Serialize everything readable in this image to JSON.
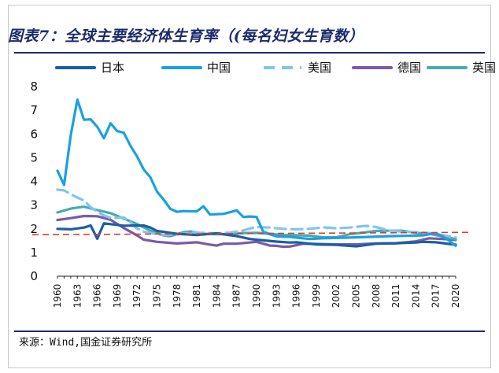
{
  "title": "图表7：全球主要经济体生育率（(每名妇女生育数）",
  "source": "来源：Wind,国金证券研究所",
  "chart_data": {
    "type": "line",
    "title": "图表7：全球主要经济体生育率（(每名妇女生育数）",
    "xlabel": "",
    "ylabel": "",
    "ylim": [
      0,
      8
    ],
    "xlim": [
      1960,
      2020
    ],
    "yticks": [
      "0",
      "1",
      "2",
      "3",
      "4",
      "5",
      "6",
      "7",
      "8"
    ],
    "xticks": [
      "1960",
      "1963",
      "1966",
      "1969",
      "1972",
      "1975",
      "1978",
      "1981",
      "1984",
      "1987",
      "1990",
      "1993",
      "1996",
      "1999",
      "2002",
      "2005",
      "2008",
      "2011",
      "2014",
      "2017",
      "2020"
    ],
    "legend_position": "top",
    "reference_line": {
      "value": 1.75,
      "slope_per_year": 0.00165,
      "style": "dashed",
      "color": "#e23b2e"
    },
    "series": [
      {
        "name": "日本",
        "color": "#1a5fa5",
        "style": "solid",
        "points": [
          [
            1960,
            2.0
          ],
          [
            1962,
            1.98
          ],
          [
            1964,
            2.05
          ],
          [
            1965,
            2.14
          ],
          [
            1966,
            1.58
          ],
          [
            1967,
            2.23
          ],
          [
            1970,
            2.13
          ],
          [
            1973,
            2.14
          ],
          [
            1974,
            2.05
          ],
          [
            1975,
            1.91
          ],
          [
            1978,
            1.79
          ],
          [
            1981,
            1.74
          ],
          [
            1984,
            1.81
          ],
          [
            1987,
            1.69
          ],
          [
            1989,
            1.57
          ],
          [
            1990,
            1.54
          ],
          [
            1993,
            1.46
          ],
          [
            1995,
            1.42
          ],
          [
            1996,
            1.43
          ],
          [
            1999,
            1.34
          ],
          [
            2002,
            1.32
          ],
          [
            2005,
            1.26
          ],
          [
            2008,
            1.37
          ],
          [
            2011,
            1.39
          ],
          [
            2014,
            1.42
          ],
          [
            2015,
            1.45
          ],
          [
            2017,
            1.43
          ],
          [
            2019,
            1.36
          ],
          [
            2020,
            1.33
          ]
        ]
      },
      {
        "name": "中国",
        "color": "#1aa1e0",
        "style": "solid",
        "points": [
          [
            1960,
            4.45
          ],
          [
            1961,
            3.85
          ],
          [
            1962,
            5.95
          ],
          [
            1963,
            7.45
          ],
          [
            1964,
            6.6
          ],
          [
            1965,
            6.62
          ],
          [
            1966,
            6.3
          ],
          [
            1967,
            5.82
          ],
          [
            1968,
            6.45
          ],
          [
            1969,
            6.12
          ],
          [
            1970,
            6.05
          ],
          [
            1971,
            5.5
          ],
          [
            1972,
            5.05
          ],
          [
            1973,
            4.5
          ],
          [
            1974,
            4.17
          ],
          [
            1975,
            3.57
          ],
          [
            1976,
            3.23
          ],
          [
            1977,
            2.84
          ],
          [
            1978,
            2.72
          ],
          [
            1979,
            2.75
          ],
          [
            1980,
            2.74
          ],
          [
            1981,
            2.74
          ],
          [
            1982,
            2.95
          ],
          [
            1983,
            2.6
          ],
          [
            1984,
            2.62
          ],
          [
            1985,
            2.63
          ],
          [
            1986,
            2.7
          ],
          [
            1987,
            2.78
          ],
          [
            1988,
            2.5
          ],
          [
            1989,
            2.52
          ],
          [
            1990,
            2.5
          ],
          [
            1991,
            1.88
          ],
          [
            1992,
            1.77
          ],
          [
            1993,
            1.68
          ],
          [
            1995,
            1.66
          ],
          [
            1998,
            1.57
          ],
          [
            2000,
            1.6
          ],
          [
            2005,
            1.64
          ],
          [
            2010,
            1.69
          ],
          [
            2015,
            1.72
          ],
          [
            2016,
            1.77
          ],
          [
            2017,
            1.81
          ],
          [
            2018,
            1.69
          ],
          [
            2019,
            1.5
          ],
          [
            2020,
            1.28
          ]
        ]
      },
      {
        "name": "美国",
        "color": "#7fc6ec",
        "style": "dashed",
        "points": [
          [
            1960,
            3.65
          ],
          [
            1961,
            3.62
          ],
          [
            1962,
            3.46
          ],
          [
            1963,
            3.32
          ],
          [
            1964,
            3.19
          ],
          [
            1965,
            2.91
          ],
          [
            1966,
            2.72
          ],
          [
            1967,
            2.56
          ],
          [
            1968,
            2.46
          ],
          [
            1969,
            2.46
          ],
          [
            1970,
            2.48
          ],
          [
            1971,
            2.27
          ],
          [
            1972,
            2.01
          ],
          [
            1973,
            1.88
          ],
          [
            1975,
            1.77
          ],
          [
            1976,
            1.74
          ],
          [
            1978,
            1.76
          ],
          [
            1980,
            1.84
          ],
          [
            1982,
            1.83
          ],
          [
            1984,
            1.81
          ],
          [
            1986,
            1.84
          ],
          [
            1988,
            1.93
          ],
          [
            1989,
            2.01
          ],
          [
            1990,
            2.08
          ],
          [
            1992,
            2.05
          ],
          [
            1994,
            2.0
          ],
          [
            1996,
            1.98
          ],
          [
            1998,
            2.0
          ],
          [
            2000,
            2.06
          ],
          [
            2002,
            2.02
          ],
          [
            2004,
            2.05
          ],
          [
            2006,
            2.11
          ],
          [
            2007,
            2.12
          ],
          [
            2008,
            2.07
          ],
          [
            2009,
            2.0
          ],
          [
            2010,
            1.93
          ],
          [
            2012,
            1.88
          ],
          [
            2014,
            1.86
          ],
          [
            2016,
            1.82
          ],
          [
            2018,
            1.73
          ],
          [
            2020,
            1.64
          ]
        ]
      },
      {
        "name": "德国",
        "color": "#7b5aa6",
        "style": "solid",
        "points": [
          [
            1960,
            2.37
          ],
          [
            1962,
            2.45
          ],
          [
            1964,
            2.54
          ],
          [
            1966,
            2.53
          ],
          [
            1968,
            2.38
          ],
          [
            1970,
            2.03
          ],
          [
            1972,
            1.72
          ],
          [
            1973,
            1.54
          ],
          [
            1975,
            1.45
          ],
          [
            1978,
            1.38
          ],
          [
            1981,
            1.43
          ],
          [
            1983,
            1.33
          ],
          [
            1984,
            1.29
          ],
          [
            1985,
            1.37
          ],
          [
            1987,
            1.37
          ],
          [
            1990,
            1.45
          ],
          [
            1992,
            1.29
          ],
          [
            1993,
            1.28
          ],
          [
            1994,
            1.24
          ],
          [
            1995,
            1.25
          ],
          [
            1997,
            1.37
          ],
          [
            1999,
            1.36
          ],
          [
            2002,
            1.34
          ],
          [
            2005,
            1.34
          ],
          [
            2008,
            1.38
          ],
          [
            2011,
            1.39
          ],
          [
            2014,
            1.47
          ],
          [
            2016,
            1.6
          ],
          [
            2018,
            1.57
          ],
          [
            2020,
            1.53
          ]
        ]
      },
      {
        "name": "英国",
        "color": "#48aab0",
        "style": "solid",
        "points": [
          [
            1960,
            2.69
          ],
          [
            1962,
            2.85
          ],
          [
            1964,
            2.93
          ],
          [
            1966,
            2.79
          ],
          [
            1968,
            2.66
          ],
          [
            1970,
            2.43
          ],
          [
            1972,
            2.2
          ],
          [
            1974,
            1.92
          ],
          [
            1976,
            1.72
          ],
          [
            1977,
            1.69
          ],
          [
            1979,
            1.86
          ],
          [
            1980,
            1.89
          ],
          [
            1982,
            1.79
          ],
          [
            1984,
            1.77
          ],
          [
            1986,
            1.78
          ],
          [
            1988,
            1.82
          ],
          [
            1990,
            1.83
          ],
          [
            1992,
            1.79
          ],
          [
            1994,
            1.74
          ],
          [
            1996,
            1.73
          ],
          [
            1998,
            1.71
          ],
          [
            2000,
            1.64
          ],
          [
            2002,
            1.64
          ],
          [
            2004,
            1.77
          ],
          [
            2006,
            1.84
          ],
          [
            2008,
            1.91
          ],
          [
            2010,
            1.92
          ],
          [
            2012,
            1.92
          ],
          [
            2014,
            1.83
          ],
          [
            2016,
            1.79
          ],
          [
            2018,
            1.68
          ],
          [
            2020,
            1.56
          ]
        ]
      }
    ]
  }
}
